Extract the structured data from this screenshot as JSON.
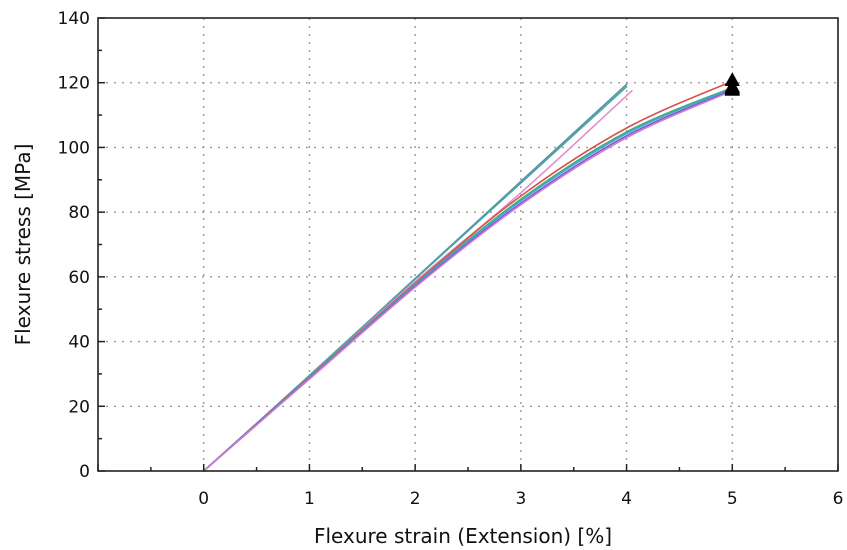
{
  "chart_data": {
    "type": "line",
    "title": "",
    "xlabel": "Flexure strain (Extension) [%]",
    "ylabel": "Flexure stress [MPa]",
    "xlim": [
      -1,
      6
    ],
    "ylim": [
      0,
      140
    ],
    "x_ticks": [
      0,
      1,
      2,
      3,
      4,
      5,
      6
    ],
    "y_ticks": [
      0,
      20,
      40,
      60,
      80,
      100,
      120,
      140
    ],
    "grid": true,
    "legend": "none",
    "series": [
      {
        "color": "#5b8fb0",
        "x": [
          0,
          1,
          2,
          3,
          4
        ],
        "y": [
          0,
          29.5,
          59.5,
          89.5,
          119.5
        ],
        "marker": "none"
      },
      {
        "color": "#4aa7a0",
        "x": [
          0,
          1,
          2,
          3,
          4
        ],
        "y": [
          0,
          29.3,
          59.3,
          89.0,
          118.8
        ],
        "marker": "none"
      },
      {
        "color": "#e08fd0",
        "x": [
          0,
          1,
          2,
          3,
          4.05
        ],
        "y": [
          0,
          29.0,
          58.5,
          86.0,
          117.5
        ],
        "marker": "none"
      },
      {
        "color": "#d85050",
        "x": [
          0,
          1,
          2,
          3,
          4,
          5
        ],
        "y": [
          0,
          29.0,
          58.0,
          85.0,
          106.0,
          120.5
        ],
        "marker": "triangle"
      },
      {
        "color": "#3cb06a",
        "x": [
          0,
          1,
          2,
          3,
          4,
          5
        ],
        "y": [
          0,
          28.8,
          57.6,
          84.0,
          104.8,
          118.5
        ],
        "marker": "triangle"
      },
      {
        "color": "#3fa8d8",
        "x": [
          0,
          1,
          2,
          3,
          4,
          5
        ],
        "y": [
          0,
          28.7,
          57.4,
          83.5,
          104.3,
          118.2
        ],
        "marker": "triangle"
      },
      {
        "color": "#7a5ac8",
        "x": [
          0,
          1,
          2,
          3,
          4,
          5
        ],
        "y": [
          0,
          28.6,
          57.1,
          82.8,
          103.6,
          117.8
        ],
        "marker": "triangle"
      },
      {
        "color": "#d07ad8",
        "x": [
          0,
          1,
          2,
          3,
          4,
          5
        ],
        "y": [
          0,
          28.4,
          56.8,
          82.3,
          103.0,
          117.5
        ],
        "marker": "triangle"
      }
    ]
  }
}
